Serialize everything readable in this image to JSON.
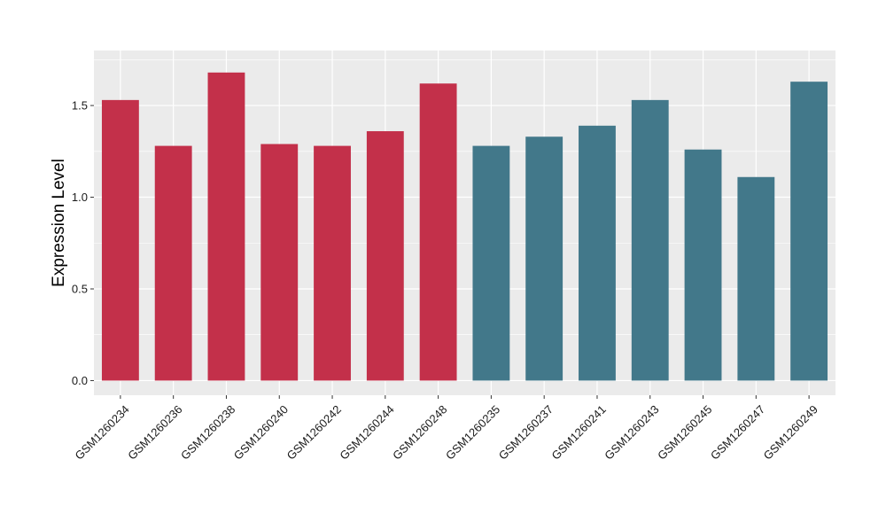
{
  "chart_data": {
    "type": "bar",
    "title": "",
    "xlabel": "",
    "ylabel": "Expression Level",
    "ylim": [
      -0.08,
      1.8
    ],
    "yticks": [
      0.0,
      0.5,
      1.0,
      1.5
    ],
    "ytick_labels": [
      "0.0",
      "0.5",
      "1.0",
      "1.5"
    ],
    "grid": true,
    "legend": "none",
    "categories": [
      "GSM1260234",
      "GSM1260236",
      "GSM1260238",
      "GSM1260240",
      "GSM1260242",
      "GSM1260244",
      "GSM1260248",
      "GSM1260235",
      "GSM1260237",
      "GSM1260241",
      "GSM1260243",
      "GSM1260245",
      "GSM1260247",
      "GSM1260249"
    ],
    "values": [
      1.53,
      1.28,
      1.68,
      1.29,
      1.28,
      1.36,
      1.62,
      1.28,
      1.33,
      1.39,
      1.53,
      1.26,
      1.11,
      1.63
    ],
    "bar_colors": [
      "#c3304a",
      "#c3304a",
      "#c3304a",
      "#c3304a",
      "#c3304a",
      "#c3304a",
      "#c3304a",
      "#42788a",
      "#42788a",
      "#42788a",
      "#42788a",
      "#42788a",
      "#42788a",
      "#42788a"
    ],
    "panel_background": "#ebebeb",
    "grid_color": "#ffffff"
  }
}
